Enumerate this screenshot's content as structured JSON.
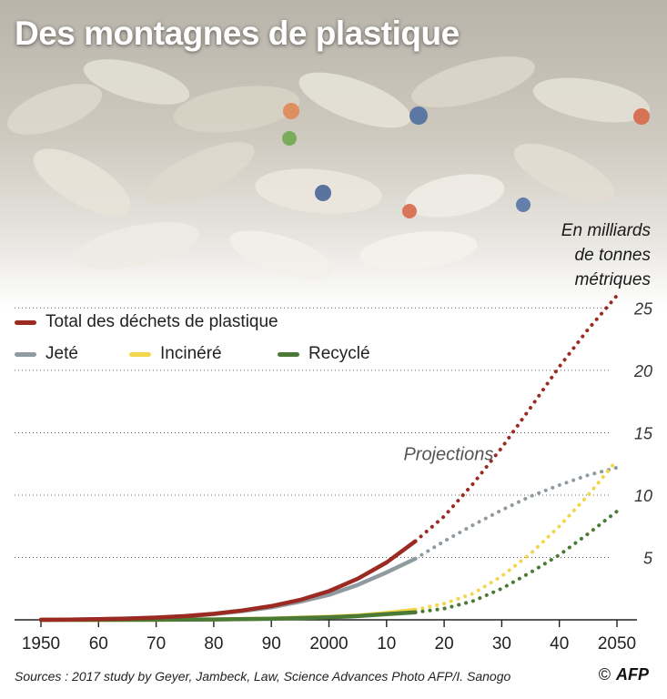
{
  "header": {
    "title": "Des montagnes de plastique"
  },
  "unit_note": {
    "line1": "En milliards",
    "line2": "de tonnes",
    "line3": "métriques"
  },
  "legend": [
    {
      "label": "Total des déchets de plastique",
      "color": "#9b2a22"
    },
    {
      "label": "Jeté",
      "color": "#8f9ba0"
    },
    {
      "label": "Incinéré",
      "color": "#f2d64b"
    },
    {
      "label": "Recyclé",
      "color": "#4a7a35"
    }
  ],
  "footer": {
    "sources": "Sources : 2017 study by Geyer, Jambeck, Law, Science Advances   Photo AFP/I. Sanogo",
    "copyright": "©",
    "logo": "AFP"
  },
  "chart_data": {
    "type": "line",
    "title": "Des montagnes de plastique",
    "ylabel": "En milliards de tonnes métriques",
    "xlim": [
      1950,
      2050
    ],
    "ylim": [
      0,
      27
    ],
    "yticks": [
      5,
      10,
      15,
      20,
      25
    ],
    "xtick_labels": [
      {
        "x": 1950,
        "label": "1950"
      },
      {
        "x": 1960,
        "label": "60"
      },
      {
        "x": 1970,
        "label": "70"
      },
      {
        "x": 1980,
        "label": "80"
      },
      {
        "x": 1990,
        "label": "90"
      },
      {
        "x": 2000,
        "label": "2000"
      },
      {
        "x": 2010,
        "label": "10"
      },
      {
        "x": 2020,
        "label": "20"
      },
      {
        "x": 2030,
        "label": "30"
      },
      {
        "x": 2040,
        "label": "40"
      },
      {
        "x": 2050,
        "label": "2050"
      }
    ],
    "projection_start": 2015,
    "annotation": {
      "text": "Projections",
      "x": 2015,
      "y": 12.8
    },
    "grid": "horizontal-dotted",
    "legend_position": "top-left",
    "series": [
      {
        "name": "Total des déchets de plastique",
        "color": "#9b2a22",
        "x": [
          1950,
          1955,
          1960,
          1965,
          1970,
          1975,
          1980,
          1985,
          1990,
          1995,
          2000,
          2005,
          2010,
          2015,
          2020,
          2025,
          2030,
          2035,
          2040,
          2045,
          2050
        ],
        "values": [
          0.0,
          0.02,
          0.05,
          0.1,
          0.18,
          0.3,
          0.48,
          0.75,
          1.1,
          1.6,
          2.3,
          3.3,
          4.6,
          6.3,
          8.3,
          10.9,
          13.8,
          17.0,
          20.3,
          23.3,
          26.0
        ]
      },
      {
        "name": "Jeté",
        "color": "#8f9ba0",
        "x": [
          1950,
          1955,
          1960,
          1965,
          1970,
          1975,
          1980,
          1985,
          1990,
          1995,
          2000,
          2005,
          2010,
          2015,
          2020,
          2025,
          2030,
          2035,
          2040,
          2045,
          2050
        ],
        "values": [
          0.0,
          0.02,
          0.05,
          0.1,
          0.17,
          0.28,
          0.45,
          0.7,
          1.0,
          1.45,
          2.0,
          2.8,
          3.8,
          4.9,
          6.3,
          7.6,
          8.8,
          9.9,
          10.8,
          11.6,
          12.2
        ]
      },
      {
        "name": "Incinéré",
        "color": "#f2d64b",
        "x": [
          1950,
          1960,
          1970,
          1980,
          1990,
          2000,
          2005,
          2010,
          2015,
          2020,
          2025,
          2030,
          2035,
          2040,
          2045,
          2050
        ],
        "values": [
          0.0,
          0.0,
          0.01,
          0.03,
          0.1,
          0.25,
          0.35,
          0.55,
          0.8,
          1.3,
          2.1,
          3.5,
          5.3,
          7.5,
          10.0,
          12.8
        ]
      },
      {
        "name": "Recyclé",
        "color": "#4a7a35",
        "x": [
          1950,
          1960,
          1970,
          1980,
          1990,
          2000,
          2005,
          2010,
          2015,
          2020,
          2025,
          2030,
          2035,
          2040,
          2045,
          2050
        ],
        "values": [
          0.0,
          0.0,
          0.01,
          0.03,
          0.08,
          0.2,
          0.3,
          0.45,
          0.6,
          0.9,
          1.5,
          2.5,
          3.8,
          5.2,
          6.9,
          8.7
        ]
      }
    ]
  }
}
